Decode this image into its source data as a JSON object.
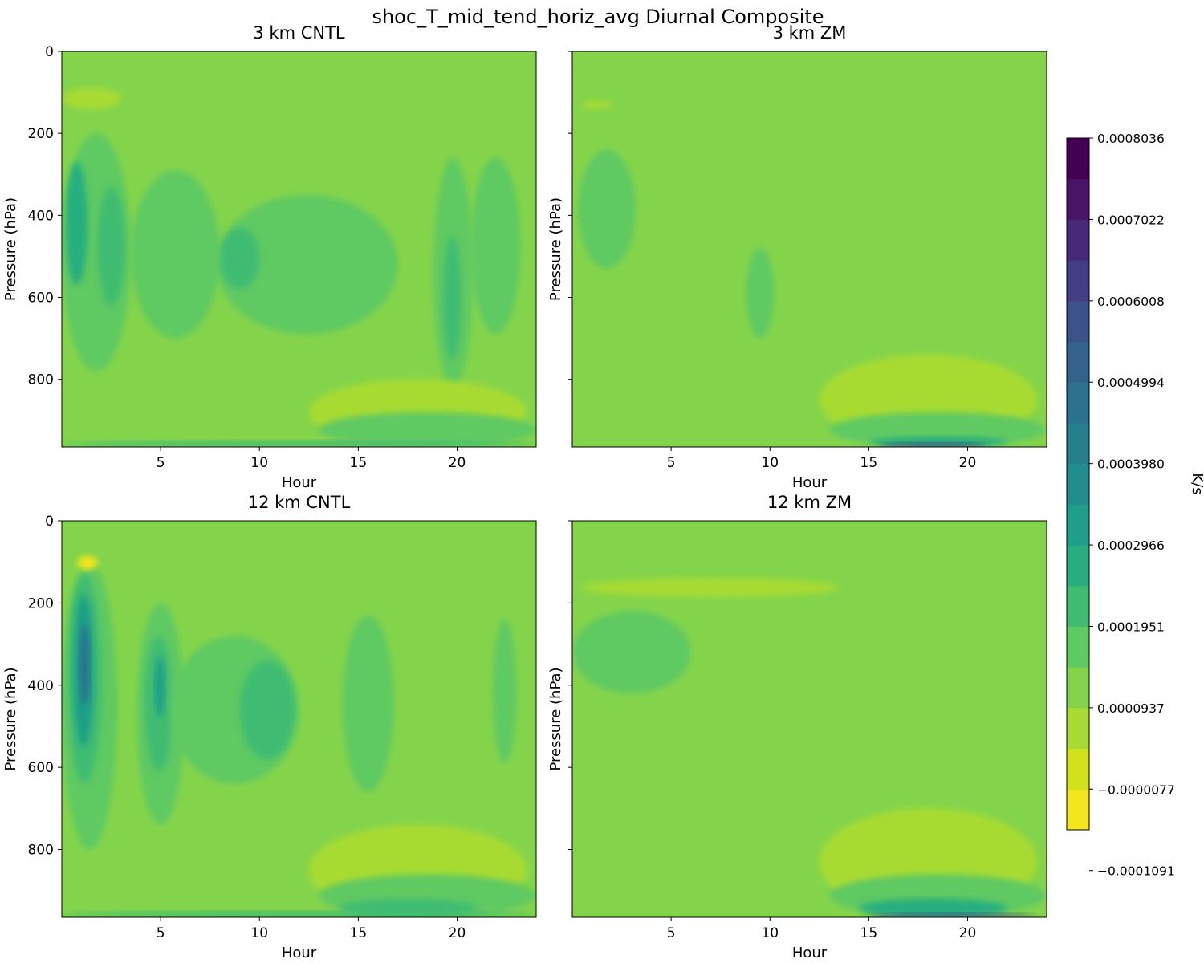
{
  "figure": {
    "title": "shoc_T_mid_tend_horiz_avg Diurnal Composite"
  },
  "colors": {
    "levels": [
      "#f3e51e",
      "#d1e11c",
      "#a8db33",
      "#84d44b",
      "#5fc962",
      "#3fbc72",
      "#27ad80",
      "#1f9e89",
      "#228d8d",
      "#277f8e",
      "#2c718e",
      "#33628d",
      "#3b528b",
      "#433e85",
      "#482979",
      "#481467",
      "#440154"
    ],
    "background_level": 3
  },
  "chart_data": [
    {
      "type": "heatmap",
      "title": "3 km CNTL",
      "xlabel": "Hour",
      "ylabel": "Pressure (hPa)",
      "xlim": [
        0,
        24
      ],
      "ylim": [
        965,
        0
      ],
      "xticks": [
        "5",
        "10",
        "15",
        "20"
      ],
      "yticks": [
        "0",
        "200",
        "400",
        "600",
        "800"
      ],
      "features": [
        {
          "x": [
            0.0,
            3.5
          ],
          "p": [
            200,
            780
          ],
          "level": 4
        },
        {
          "x": [
            0.2,
            1.3
          ],
          "p": [
            270,
            570
          ],
          "level": 6
        },
        {
          "x": [
            1.8,
            3.2
          ],
          "p": [
            330,
            620
          ],
          "level": 5
        },
        {
          "x": [
            3.5,
            8.0
          ],
          "p": [
            290,
            700
          ],
          "level": 4
        },
        {
          "x": [
            7.8,
            17.0
          ],
          "p": [
            350,
            690
          ],
          "level": 4
        },
        {
          "x": [
            8.0,
            10.0
          ],
          "p": [
            430,
            580
          ],
          "level": 5
        },
        {
          "x": [
            18.8,
            20.8
          ],
          "p": [
            260,
            820
          ],
          "level": 4
        },
        {
          "x": [
            19.3,
            20.2
          ],
          "p": [
            450,
            750
          ],
          "level": 5
        },
        {
          "x": [
            20.7,
            23.2
          ],
          "p": [
            260,
            690
          ],
          "level": 4
        },
        {
          "x": [
            0.0,
            3.0
          ],
          "p": [
            90,
            140
          ],
          "level": 2
        },
        {
          "x": [
            12.5,
            23.5
          ],
          "p": [
            800,
            960
          ],
          "level": 2
        },
        {
          "x": [
            13.0,
            24.0
          ],
          "p": [
            880,
            965
          ],
          "level": 4
        },
        {
          "x": [
            0.0,
            24.0
          ],
          "p": [
            950,
            965
          ],
          "level": 5
        }
      ],
      "colorbar": {
        "label": "K/s",
        "tick_labels": [
          "0.0008036",
          "0.0007022",
          "0.0006008",
          "0.0004994",
          "0.0003980",
          "0.0002966",
          "0.0001951",
          "0.0000937",
          "−0.0000077",
          "−0.0001091"
        ]
      }
    },
    {
      "type": "heatmap",
      "title": "3 km ZM",
      "xlabel": "Hour",
      "ylabel": "Pressure (hPa)",
      "xlim": [
        0,
        24
      ],
      "ylim": [
        965,
        0
      ],
      "xticks": [
        "5",
        "10",
        "15",
        "20"
      ],
      "yticks": [
        "0",
        "200",
        "400",
        "600",
        "800"
      ],
      "features": [
        {
          "x": [
            0.3,
            3.2
          ],
          "p": [
            240,
            530
          ],
          "level": 4
        },
        {
          "x": [
            8.8,
            10.2
          ],
          "p": [
            480,
            700
          ],
          "level": 4
        },
        {
          "x": [
            0.5,
            2.0
          ],
          "p": [
            120,
            140
          ],
          "level": 2
        },
        {
          "x": [
            12.5,
            23.5
          ],
          "p": [
            740,
            960
          ],
          "level": 2
        },
        {
          "x": [
            13.0,
            24.0
          ],
          "p": [
            880,
            965
          ],
          "level": 4
        },
        {
          "x": [
            15.0,
            22.0
          ],
          "p": [
            940,
            965
          ],
          "level": 6
        },
        {
          "x": [
            15.5,
            21.0
          ],
          "p": [
            955,
            965
          ],
          "level": 13
        }
      ],
      "colorbar": {
        "label": "K/s",
        "tick_labels": [
          "0.0008036",
          "0.0007022",
          "0.0006008",
          "0.0004994",
          "0.0003980",
          "0.0002966",
          "0.0001951",
          "0.0000937",
          "−0.0000077",
          "−0.0001091"
        ]
      }
    },
    {
      "type": "heatmap",
      "title": "12 km CNTL",
      "xlabel": "Hour",
      "ylabel": "Pressure (hPa)",
      "xlim": [
        0,
        24
      ],
      "ylim": [
        965,
        0
      ],
      "xticks": [
        "5",
        "10",
        "15",
        "20"
      ],
      "yticks": [
        "0",
        "200",
        "400",
        "600",
        "800"
      ],
      "features": [
        {
          "x": [
            0.0,
            2.8
          ],
          "p": [
            100,
            800
          ],
          "level": 4
        },
        {
          "x": [
            0.3,
            2.0
          ],
          "p": [
            130,
            640
          ],
          "level": 5
        },
        {
          "x": [
            0.6,
            1.6
          ],
          "p": [
            180,
            550
          ],
          "level": 7
        },
        {
          "x": [
            0.9,
            1.4
          ],
          "p": [
            250,
            450
          ],
          "level": 10
        },
        {
          "x": [
            3.8,
            6.2
          ],
          "p": [
            200,
            740
          ],
          "level": 4
        },
        {
          "x": [
            4.2,
            5.6
          ],
          "p": [
            280,
            610
          ],
          "level": 5
        },
        {
          "x": [
            4.7,
            5.2
          ],
          "p": [
            330,
            480
          ],
          "level": 7
        },
        {
          "x": [
            5.5,
            12.0
          ],
          "p": [
            280,
            640
          ],
          "level": 4
        },
        {
          "x": [
            9.0,
            11.8
          ],
          "p": [
            340,
            580
          ],
          "level": 5
        },
        {
          "x": [
            14.2,
            16.8
          ],
          "p": [
            230,
            660
          ],
          "level": 4
        },
        {
          "x": [
            21.8,
            23.0
          ],
          "p": [
            240,
            590
          ],
          "level": 4
        },
        {
          "x": [
            0.8,
            1.8
          ],
          "p": [
            85,
            120
          ],
          "level": 0
        },
        {
          "x": [
            12.5,
            23.5
          ],
          "p": [
            740,
            960
          ],
          "level": 2
        },
        {
          "x": [
            13.0,
            24.0
          ],
          "p": [
            860,
            965
          ],
          "level": 4
        },
        {
          "x": [
            14.0,
            21.0
          ],
          "p": [
            920,
            965
          ],
          "level": 5
        },
        {
          "x": [
            0.0,
            24.0
          ],
          "p": [
            950,
            965
          ],
          "level": 5
        }
      ],
      "colorbar": {
        "label": "K/s",
        "tick_labels": [
          "0.0008036",
          "0.0007022",
          "0.0006008",
          "0.0004994",
          "0.0003980",
          "0.0002966",
          "0.0001951",
          "0.0000937",
          "−0.0000077",
          "−0.0001091"
        ]
      }
    },
    {
      "type": "heatmap",
      "title": "12 km ZM",
      "xlabel": "Hour",
      "ylabel": "Pressure (hPa)",
      "xlim": [
        0,
        24
      ],
      "ylim": [
        965,
        0
      ],
      "xticks": [
        "5",
        "10",
        "15",
        "20"
      ],
      "yticks": [
        "0",
        "200",
        "400",
        "600",
        "800"
      ],
      "features": [
        {
          "x": [
            0.0,
            6.0
          ],
          "p": [
            220,
            420
          ],
          "level": 4
        },
        {
          "x": [
            0.5,
            13.5
          ],
          "p": [
            140,
            185
          ],
          "level": 2
        },
        {
          "x": [
            12.5,
            23.5
          ],
          "p": [
            700,
            960
          ],
          "level": 2
        },
        {
          "x": [
            13.0,
            24.0
          ],
          "p": [
            860,
            965
          ],
          "level": 4
        },
        {
          "x": [
            14.5,
            22.0
          ],
          "p": [
            920,
            965
          ],
          "level": 6
        },
        {
          "x": [
            15.0,
            23.5
          ],
          "p": [
            955,
            965
          ],
          "level": 12
        }
      ],
      "colorbar": {
        "label": "K/s",
        "tick_labels": [
          "0.0008036",
          "0.0007022",
          "0.0006008",
          "0.0004994",
          "0.0003980",
          "0.0002966",
          "0.0001951",
          "0.0000937",
          "−0.0000077",
          "−0.0001091"
        ]
      }
    }
  ]
}
